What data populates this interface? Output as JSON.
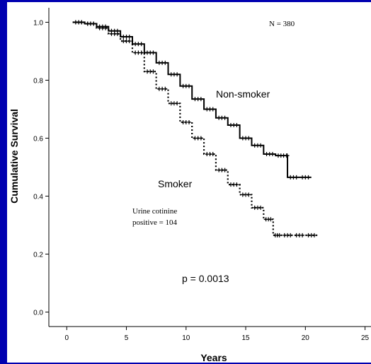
{
  "background_color": "#0000b0",
  "chart_data": {
    "type": "line",
    "title": "",
    "xlabel": "Years",
    "ylabel": "Cumulative Survival",
    "xlim": [
      -1.5,
      25.5
    ],
    "ylim": [
      -0.05,
      1.05
    ],
    "x_ticks": [
      "0",
      "5",
      "10",
      "15",
      "20",
      "25"
    ],
    "y_ticks": [
      "0.0",
      "0.2",
      "0.4",
      "0.6",
      "0.8",
      "1.0"
    ],
    "grid": false,
    "series": [
      {
        "name": "Non-smoker",
        "color": "#000000",
        "dash": "solid",
        "x": [
          0.5,
          1.5,
          2.5,
          3.5,
          4.5,
          5.5,
          6.5,
          7.5,
          8.5,
          9.5,
          10.5,
          11.5,
          12.5,
          13.5,
          14.5,
          15.5,
          16.5,
          17.5,
          18.4,
          18.5,
          19.5,
          20.5
        ],
        "y": [
          1.0,
          0.995,
          0.985,
          0.97,
          0.95,
          0.925,
          0.895,
          0.86,
          0.82,
          0.78,
          0.735,
          0.7,
          0.67,
          0.645,
          0.6,
          0.575,
          0.545,
          0.54,
          0.54,
          0.465,
          0.465,
          0.465
        ]
      },
      {
        "name": "Smoker",
        "color": "#000000",
        "dash": "dotted",
        "x": [
          0.5,
          1.5,
          2.5,
          3.5,
          4.5,
          5.5,
          6.5,
          7.5,
          8.5,
          9.5,
          10.5,
          11.5,
          12.5,
          13.5,
          14.5,
          15.5,
          16.5,
          17.3,
          18.0,
          19.0,
          20.0,
          21.0
        ],
        "y": [
          1.0,
          0.995,
          0.98,
          0.96,
          0.935,
          0.895,
          0.83,
          0.77,
          0.72,
          0.655,
          0.6,
          0.545,
          0.49,
          0.44,
          0.405,
          0.36,
          0.32,
          0.265,
          0.265,
          0.265,
          0.265,
          0.265
        ]
      }
    ],
    "annotations": {
      "n_total": "N = 380",
      "series_label_1": "Non-smoker",
      "series_label_2": "Smoker",
      "cotinine_line1": "Urine cotinine",
      "cotinine_line2": "positive = 104",
      "p_value": "p = 0.0013"
    }
  }
}
